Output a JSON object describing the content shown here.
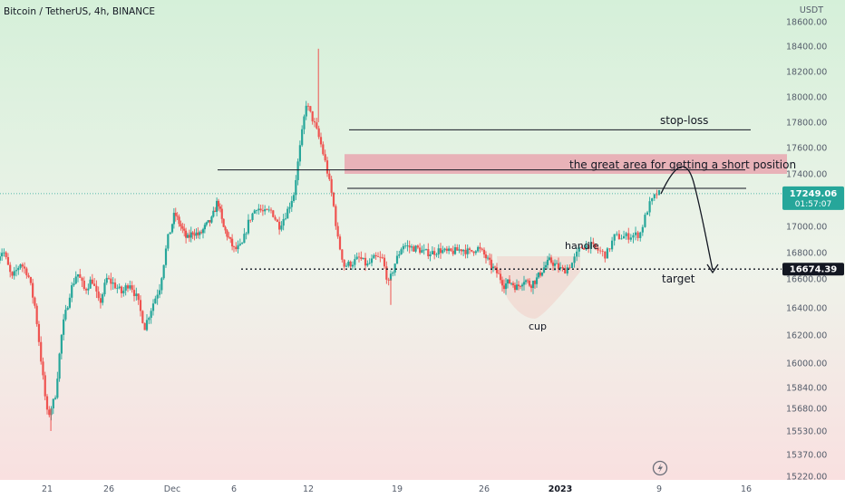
{
  "chart_data": {
    "type": "candlestick",
    "title": "Bitcoin / TetherUS, 4h, BINANCE",
    "currency": "USDT",
    "y_ticks": [
      18600,
      18400,
      18200,
      18000,
      17800,
      17600,
      17400,
      17000,
      16800,
      16600,
      16400,
      16200,
      16000,
      15840,
      15680,
      15530,
      15370,
      15220
    ],
    "x_ticks": [
      {
        "label": "21",
        "day": 21
      },
      {
        "label": "26",
        "day": 26
      },
      {
        "label": "Dec",
        "day": 31
      },
      {
        "label": "6",
        "day": 37
      },
      {
        "label": "12",
        "day": 43
      },
      {
        "label": "19",
        "day": 50
      },
      {
        "label": "26",
        "day": 57
      },
      {
        "label": "2023",
        "day": 64
      },
      {
        "label": "9",
        "day": 71
      },
      {
        "label": "16",
        "day": 78
      }
    ],
    "x_range_days": [
      17,
      80
    ],
    "path": [
      [
        17.0,
        16750
      ],
      [
        17.6,
        16820
      ],
      [
        18.3,
        16600
      ],
      [
        19.0,
        16720
      ],
      [
        19.6,
        16640
      ],
      [
        20.2,
        16400
      ],
      [
        20.7,
        16000
      ],
      [
        21.2,
        15620
      ],
      [
        21.8,
        15760
      ],
      [
        22.4,
        16250
      ],
      [
        23.0,
        16500
      ],
      [
        23.6,
        16650
      ],
      [
        24.2,
        16520
      ],
      [
        24.8,
        16600
      ],
      [
        25.4,
        16420
      ],
      [
        26.0,
        16600
      ],
      [
        26.6,
        16560
      ],
      [
        27.2,
        16500
      ],
      [
        27.8,
        16580
      ],
      [
        28.4,
        16460
      ],
      [
        29.0,
        16260
      ],
      [
        29.6,
        16420
      ],
      [
        30.2,
        16550
      ],
      [
        30.8,
        16900
      ],
      [
        31.4,
        17100
      ],
      [
        32.0,
        17000
      ],
      [
        32.6,
        16900
      ],
      [
        33.2,
        16960
      ],
      [
        33.8,
        16930
      ],
      [
        34.4,
        17000
      ],
      [
        35.0,
        17050
      ],
      [
        35.6,
        17200
      ],
      [
        36.1,
        17000
      ],
      [
        36.6,
        16920
      ],
      [
        37.2,
        16820
      ],
      [
        37.8,
        16850
      ],
      [
        38.4,
        17050
      ],
      [
        39.0,
        17150
      ],
      [
        39.6,
        17100
      ],
      [
        40.2,
        17120
      ],
      [
        40.8,
        17000
      ],
      [
        41.4,
        17100
      ],
      [
        42.0,
        17250
      ],
      [
        42.5,
        17600
      ],
      [
        43.0,
        17950
      ],
      [
        43.6,
        17800
      ],
      [
        44.1,
        17650
      ],
      [
        44.6,
        17450
      ],
      [
        45.1,
        17200
      ],
      [
        45.5,
        16900
      ],
      [
        46.0,
        16700
      ],
      [
        46.6,
        16720
      ],
      [
        47.2,
        16760
      ],
      [
        47.8,
        16700
      ],
      [
        48.4,
        16760
      ],
      [
        49.0,
        16750
      ],
      [
        49.5,
        16560
      ],
      [
        50.0,
        16720
      ],
      [
        50.6,
        16860
      ],
      [
        51.2,
        16840
      ],
      [
        51.8,
        16830
      ],
      [
        52.4,
        16800
      ],
      [
        53.0,
        16800
      ],
      [
        53.6,
        16820
      ],
      [
        54.2,
        16800
      ],
      [
        54.8,
        16810
      ],
      [
        55.4,
        16830
      ],
      [
        56.0,
        16800
      ],
      [
        56.6,
        16840
      ],
      [
        57.2,
        16780
      ],
      [
        57.8,
        16700
      ],
      [
        58.4,
        16640
      ],
      [
        59.0,
        16560
      ],
      [
        59.6,
        16580
      ],
      [
        60.2,
        16540
      ],
      [
        60.8,
        16600
      ],
      [
        61.4,
        16560
      ],
      [
        62.0,
        16600
      ],
      [
        62.6,
        16680
      ],
      [
        63.2,
        16740
      ],
      [
        63.8,
        16700
      ],
      [
        64.4,
        16660
      ],
      [
        65.0,
        16720
      ],
      [
        65.6,
        16840
      ],
      [
        66.2,
        16860
      ],
      [
        66.8,
        16820
      ],
      [
        67.4,
        16780
      ],
      [
        68.0,
        16920
      ],
      [
        68.6,
        16920
      ],
      [
        69.2,
        16930
      ],
      [
        69.8,
        16940
      ],
      [
        70.4,
        17150
      ],
      [
        71.0,
        17249
      ]
    ],
    "current_price": {
      "value": "17249.06",
      "countdown": "01:57:07",
      "y": 17249.06
    },
    "target_price": {
      "value": "16674.39",
      "y": 16674.39
    },
    "levels": {
      "stop_loss_y": 17740,
      "resistance_y": 17430,
      "mid_line_y": 17290,
      "short_zone": [
        17400,
        17550
      ]
    },
    "annotations": {
      "stop_loss": "stop-loss",
      "short_area": "the great area for getting a short position",
      "handle": "handle",
      "cup": "cup",
      "target": "target"
    }
  }
}
